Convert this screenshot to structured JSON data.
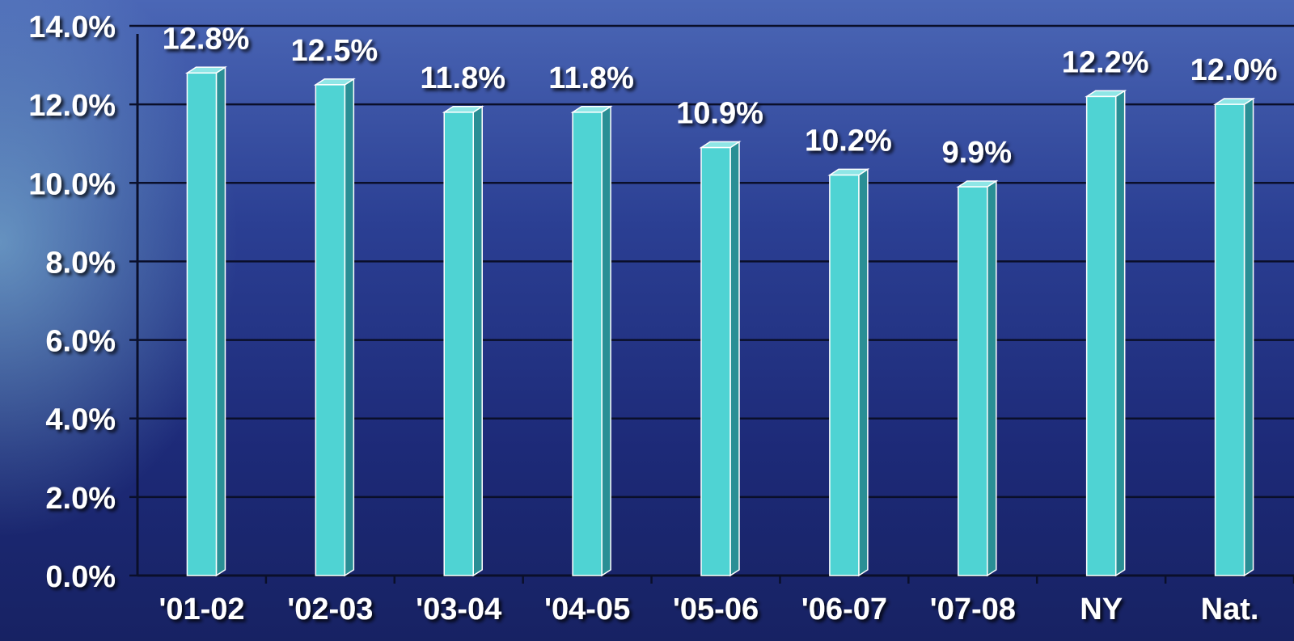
{
  "chart_data": {
    "type": "bar",
    "categories": [
      "'01-02",
      "'02-03",
      "'03-04",
      "'04-05",
      "'05-06",
      "'06-07",
      "'07-08",
      "NY",
      "Nat."
    ],
    "values": [
      12.8,
      12.5,
      11.8,
      11.8,
      10.9,
      10.2,
      9.9,
      12.2,
      12.0
    ],
    "value_labels": [
      "12.8%",
      "12.5%",
      "11.8%",
      "11.8%",
      "10.9%",
      "10.2%",
      "9.9%",
      "12.2%",
      "12.0%"
    ],
    "y_ticks": [
      "0.0%",
      "2.0%",
      "4.0%",
      "6.0%",
      "8.0%",
      "10.0%",
      "12.0%",
      "14.0%"
    ],
    "ylim": [
      0,
      14
    ],
    "grid": true,
    "bar_color": "#4fd3d3",
    "grid_color": "#0a0f2a",
    "title": "",
    "xlabel": "",
    "ylabel": ""
  }
}
